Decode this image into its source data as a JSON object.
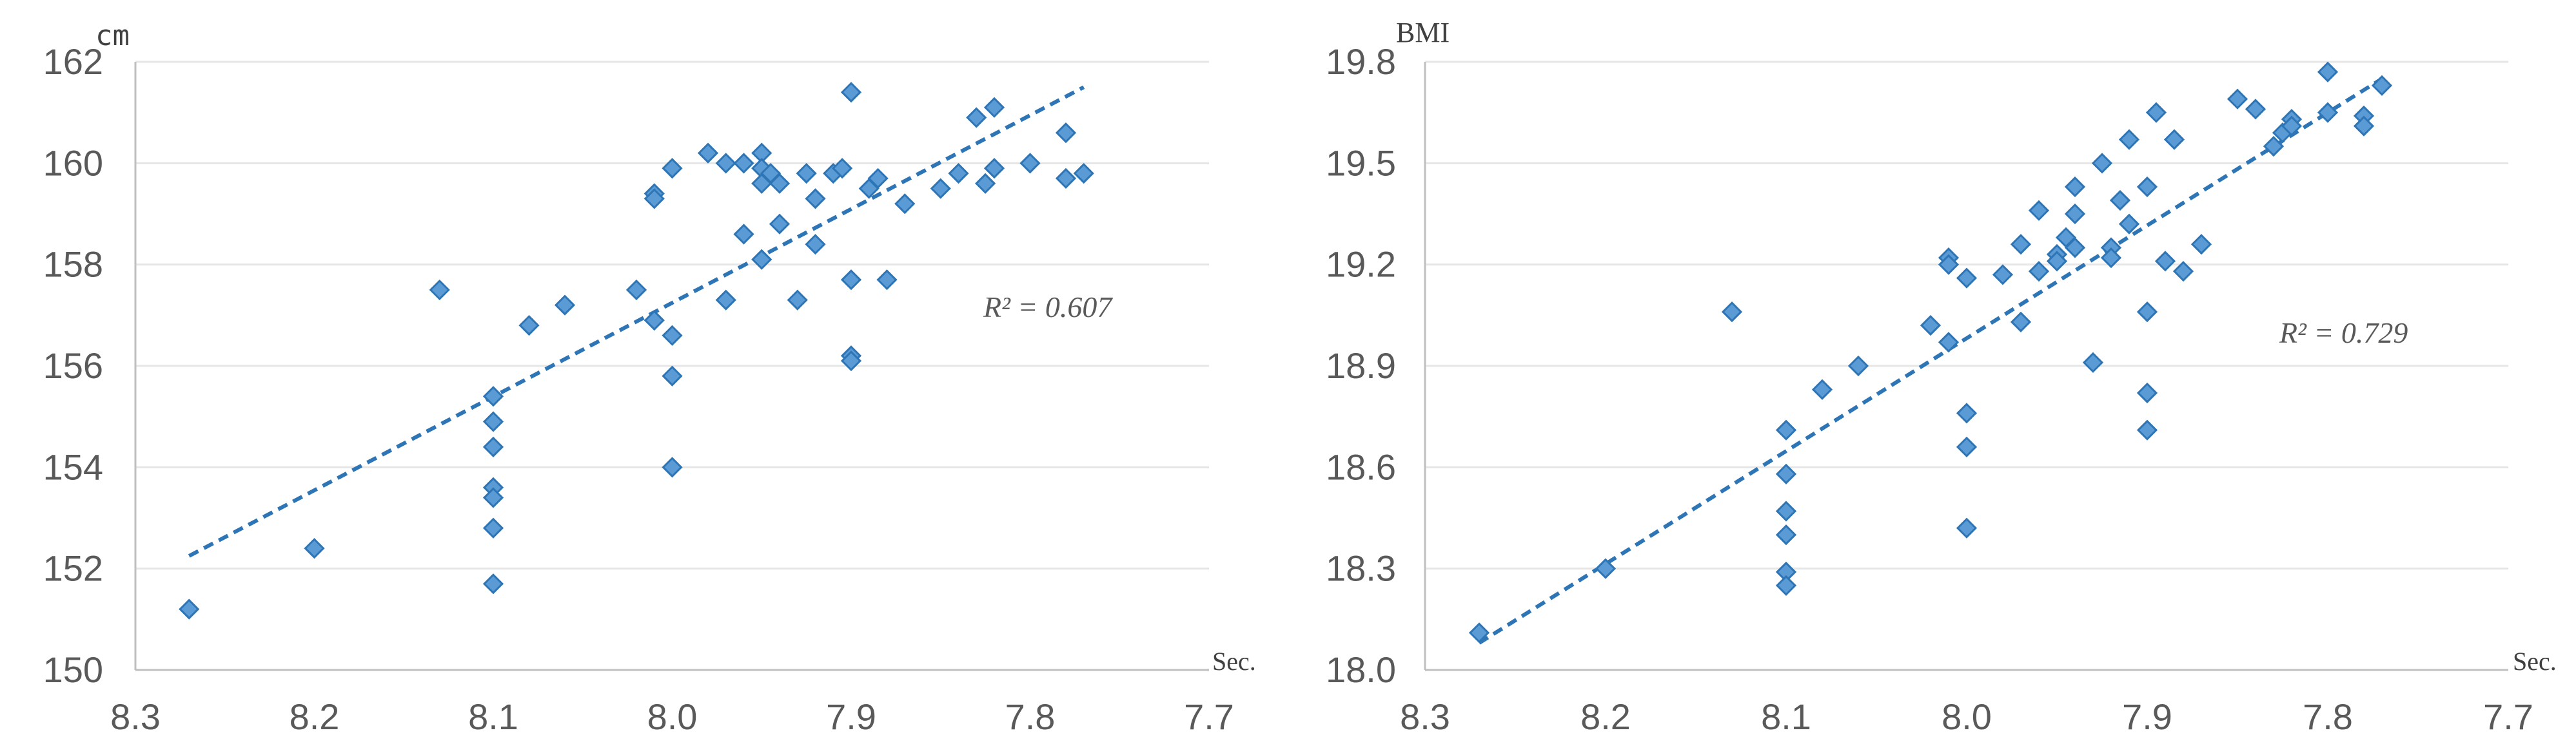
{
  "chart_data": [
    {
      "type": "scatter",
      "y_unit_label": "cm",
      "x_unit_label": "Sec.",
      "xlim": [
        8.3,
        7.7
      ],
      "x_reversed": true,
      "ylim": [
        150,
        162
      ],
      "x_ticks": [
        "8.3",
        "8.2",
        "8.1",
        "8.0",
        "7.9",
        "7.8",
        "7.7"
      ],
      "x_tick_values": [
        8.3,
        8.2,
        8.1,
        8.0,
        7.9,
        7.8,
        7.7
      ],
      "y_ticks": [
        "150",
        "152",
        "154",
        "156",
        "158",
        "160",
        "162"
      ],
      "y_tick_values": [
        150,
        152,
        154,
        156,
        158,
        160,
        162
      ],
      "grid": "horizontal",
      "annotation": "R² = 0.607",
      "trendline": {
        "style": "dashed",
        "from": [
          8.27,
          152.25
        ],
        "to": [
          7.77,
          161.5
        ]
      },
      "colors": {
        "marker_fill": "#5b9bd5",
        "marker_edge": "#2e75b6",
        "trendline": "#2e75b6"
      },
      "points": [
        [
          8.27,
          151.2
        ],
        [
          8.2,
          152.4
        ],
        [
          8.13,
          157.5
        ],
        [
          8.1,
          155.4
        ],
        [
          8.1,
          154.9
        ],
        [
          8.1,
          154.4
        ],
        [
          8.1,
          153.6
        ],
        [
          8.1,
          153.4
        ],
        [
          8.1,
          152.8
        ],
        [
          8.1,
          151.7
        ],
        [
          8.08,
          156.8
        ],
        [
          8.06,
          157.2
        ],
        [
          8.02,
          157.5
        ],
        [
          8.01,
          159.4
        ],
        [
          8.01,
          159.3
        ],
        [
          8.01,
          156.9
        ],
        [
          8.0,
          159.9
        ],
        [
          8.0,
          156.6
        ],
        [
          8.0,
          155.8
        ],
        [
          8.0,
          154.0
        ],
        [
          7.98,
          160.2
        ],
        [
          7.97,
          160.0
        ],
        [
          7.97,
          157.3
        ],
        [
          7.96,
          160.0
        ],
        [
          7.96,
          158.6
        ],
        [
          7.95,
          160.2
        ],
        [
          7.95,
          159.9
        ],
        [
          7.95,
          159.6
        ],
        [
          7.95,
          158.1
        ],
        [
          7.945,
          159.8
        ],
        [
          7.94,
          159.6
        ],
        [
          7.94,
          158.8
        ],
        [
          7.93,
          157.3
        ],
        [
          7.925,
          159.8
        ],
        [
          7.92,
          159.3
        ],
        [
          7.92,
          158.4
        ],
        [
          7.91,
          159.8
        ],
        [
          7.905,
          159.9
        ],
        [
          7.9,
          161.4
        ],
        [
          7.9,
          157.7
        ],
        [
          7.9,
          156.2
        ],
        [
          7.9,
          156.1
        ],
        [
          7.89,
          159.5
        ],
        [
          7.885,
          159.7
        ],
        [
          7.88,
          157.7
        ],
        [
          7.87,
          159.2
        ],
        [
          7.85,
          159.5
        ],
        [
          7.84,
          159.8
        ],
        [
          7.83,
          160.9
        ],
        [
          7.825,
          159.6
        ],
        [
          7.82,
          161.1
        ],
        [
          7.82,
          159.9
        ],
        [
          7.8,
          160.0
        ],
        [
          7.78,
          160.6
        ],
        [
          7.78,
          159.7
        ],
        [
          7.77,
          159.8
        ]
      ]
    },
    {
      "type": "scatter",
      "y_unit_label": "BMI",
      "x_unit_label": "Sec.",
      "xlim": [
        8.3,
        7.7
      ],
      "x_reversed": true,
      "ylim": [
        18.0,
        19.8
      ],
      "x_ticks": [
        "8.3",
        "8.2",
        "8.1",
        "8.0",
        "7.9",
        "7.8",
        "7.7"
      ],
      "x_tick_values": [
        8.3,
        8.2,
        8.1,
        8.0,
        7.9,
        7.8,
        7.7
      ],
      "y_ticks": [
        "18.0",
        "18.3",
        "18.6",
        "18.9",
        "19.2",
        "19.5",
        "19.8"
      ],
      "y_tick_values": [
        18.0,
        18.3,
        18.6,
        18.9,
        19.2,
        19.5,
        19.8
      ],
      "grid": "horizontal",
      "annotation": "R² = 0.729",
      "trendline": {
        "style": "dashed",
        "from": [
          8.27,
          18.08
        ],
        "to": [
          7.77,
          19.75
        ]
      },
      "colors": {
        "marker_fill": "#5b9bd5",
        "marker_edge": "#2e75b6",
        "trendline": "#2e75b6"
      },
      "points": [
        [
          8.27,
          18.11
        ],
        [
          8.2,
          18.3
        ],
        [
          8.13,
          19.06
        ],
        [
          8.1,
          18.71
        ],
        [
          8.1,
          18.58
        ],
        [
          8.1,
          18.47
        ],
        [
          8.1,
          18.4
        ],
        [
          8.1,
          18.29
        ],
        [
          8.1,
          18.25
        ],
        [
          8.08,
          18.83
        ],
        [
          8.06,
          18.9
        ],
        [
          8.02,
          19.02
        ],
        [
          8.01,
          19.22
        ],
        [
          8.01,
          19.2
        ],
        [
          8.01,
          18.97
        ],
        [
          8.0,
          19.16
        ],
        [
          8.0,
          18.76
        ],
        [
          8.0,
          18.66
        ],
        [
          8.0,
          18.42
        ],
        [
          7.98,
          19.17
        ],
        [
          7.97,
          19.26
        ],
        [
          7.97,
          19.03
        ],
        [
          7.96,
          19.36
        ],
        [
          7.96,
          19.18
        ],
        [
          7.95,
          19.23
        ],
        [
          7.95,
          19.21
        ],
        [
          7.945,
          19.28
        ],
        [
          7.94,
          19.43
        ],
        [
          7.94,
          19.35
        ],
        [
          7.94,
          19.25
        ],
        [
          7.93,
          18.91
        ],
        [
          7.925,
          19.5
        ],
        [
          7.92,
          19.25
        ],
        [
          7.92,
          19.22
        ],
        [
          7.915,
          19.39
        ],
        [
          7.91,
          19.57
        ],
        [
          7.91,
          19.32
        ],
        [
          7.9,
          19.43
        ],
        [
          7.9,
          19.06
        ],
        [
          7.9,
          18.82
        ],
        [
          7.9,
          18.71
        ],
        [
          7.895,
          19.65
        ],
        [
          7.89,
          19.21
        ],
        [
          7.885,
          19.57
        ],
        [
          7.88,
          19.18
        ],
        [
          7.87,
          19.26
        ],
        [
          7.85,
          19.69
        ],
        [
          7.84,
          19.66
        ],
        [
          7.83,
          19.55
        ],
        [
          7.825,
          19.59
        ],
        [
          7.82,
          19.63
        ],
        [
          7.82,
          19.61
        ],
        [
          7.8,
          19.77
        ],
        [
          7.8,
          19.65
        ],
        [
          7.78,
          19.64
        ],
        [
          7.78,
          19.61
        ],
        [
          7.77,
          19.73
        ]
      ]
    }
  ]
}
